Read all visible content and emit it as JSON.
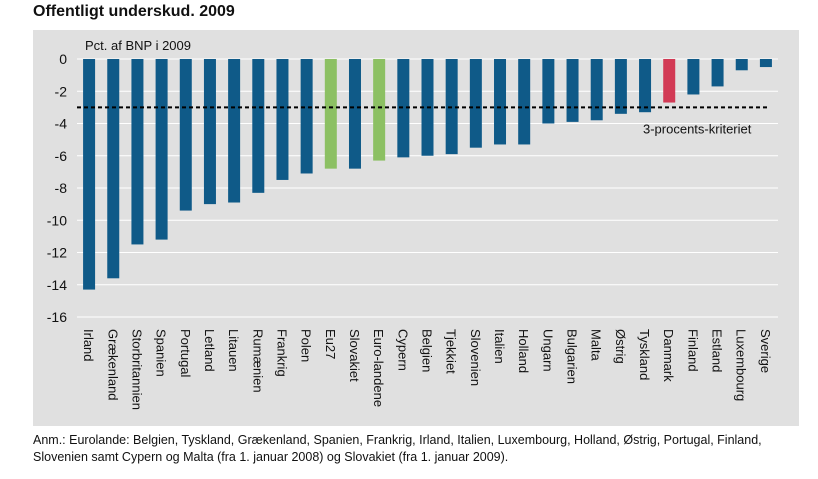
{
  "title": "Offentligt underskud. 2009",
  "note": "Anm.: Eurolande: Belgien, Tyskland, Grækenland, Spanien, Frankrig, Irland, Italien, Luxembourg, Holland, Østrig, Portugal, Finland, Slovenien samt Cypern og Malta (fra 1. januar 2008) og Slovakiet (fra 1. januar 2009).",
  "colors": {
    "default": "#0f5a88",
    "aggregate": "#8cc063",
    "denmark": "#d23a55",
    "panel": "#e0e0e0",
    "gridline": "#ffffff"
  },
  "chart_data": {
    "type": "bar",
    "title": "Offentligt underskud. 2009",
    "ylabel": "Pct. af BNP i 2009",
    "ylim": [
      -16,
      0
    ],
    "yticks": [
      0,
      -2,
      -4,
      -6,
      -8,
      -10,
      -12,
      -14,
      -16
    ],
    "grid": true,
    "categories": [
      "Irland",
      "Grækenland",
      "Storbritannien",
      "Spanien",
      "Portugal",
      "Letland",
      "Litauen",
      "Rumænien",
      "Frankrig",
      "Polen",
      "Eu27",
      "Slovakiet",
      "Euro-landene",
      "Cypern",
      "Belgien",
      "Tjekkiet",
      "Slovenien",
      "Italien",
      "Holland",
      "Ungarn",
      "Bulgarien",
      "Malta",
      "Østrig",
      "Tyskland",
      "Danmark",
      "Finland",
      "Estland",
      "Luxembourg",
      "Sverige"
    ],
    "values": [
      -14.3,
      -13.6,
      -11.5,
      -11.2,
      -9.4,
      -9.0,
      -8.9,
      -8.3,
      -7.5,
      -7.1,
      -6.8,
      -6.8,
      -6.3,
      -6.1,
      -6.0,
      -5.9,
      -5.5,
      -5.3,
      -5.3,
      -4.0,
      -3.9,
      -3.8,
      -3.4,
      -3.3,
      -2.7,
      -2.2,
      -1.7,
      -0.7,
      -0.5
    ],
    "bar_colors": [
      "default",
      "default",
      "default",
      "default",
      "default",
      "default",
      "default",
      "default",
      "default",
      "default",
      "aggregate",
      "default",
      "aggregate",
      "default",
      "default",
      "default",
      "default",
      "default",
      "default",
      "default",
      "default",
      "default",
      "default",
      "default",
      "denmark",
      "default",
      "default",
      "default",
      "default"
    ],
    "reference_line": {
      "value": -3,
      "label": "3-procents-kriteriet",
      "style": "dashed"
    }
  }
}
